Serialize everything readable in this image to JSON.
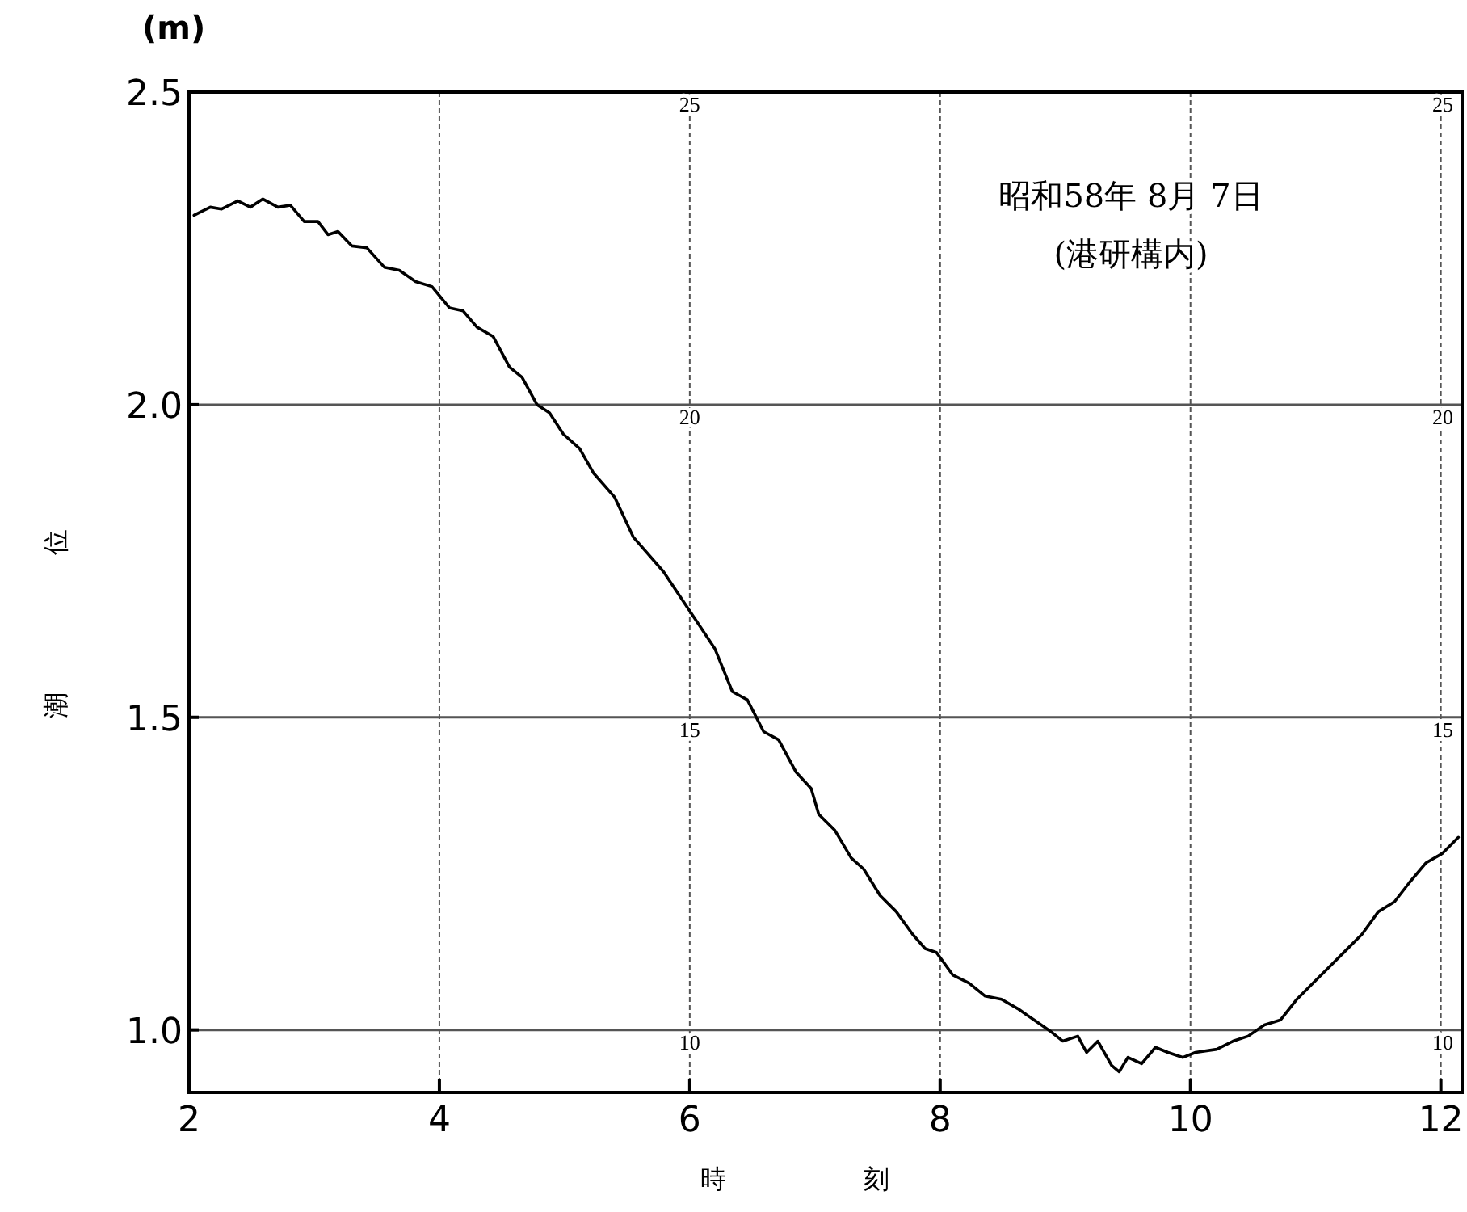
{
  "chart_data": {
    "type": "line",
    "ylabel": "潮 位",
    "xlabel": "時 刻",
    "annotations": [
      "(m)",
      "昭和58年 8月 7日",
      "(港研構内)",
      "10",
      "15",
      "20",
      "25"
    ],
    "xlim": [
      2,
      12.17
    ],
    "ylim": [
      0.9,
      2.5
    ],
    "xticks": [
      2,
      4,
      6,
      8,
      10,
      12
    ],
    "yticks": [
      {
        "value": 1.0,
        "label": "1.0"
      },
      1.5,
      {
        "value": 2.0,
        "label": "2.0"
      },
      2.5
    ],
    "y2lim": [
      9,
      25
    ],
    "y2ticks": [
      10,
      15,
      20,
      25
    ],
    "grid": true,
    "marker": "none",
    "line_style": "solid",
    "series": [
      {
        "color": "#000000",
        "x": [
          2.04,
          2.17,
          2.26,
          2.39,
          2.49,
          2.59,
          2.71,
          2.81,
          2.92,
          3.03,
          3.11,
          3.19,
          3.3,
          3.42,
          3.56,
          3.68,
          3.81,
          3.94,
          4.08,
          4.19,
          4.3,
          4.43,
          4.56,
          4.66,
          4.78,
          4.88,
          4.99,
          5.12,
          5.23,
          5.4,
          5.55,
          5.79,
          5.9,
          6.05,
          6.2,
          6.34,
          6.46,
          6.59,
          6.71,
          6.85,
          6.97,
          7.03,
          7.16,
          7.29,
          7.39,
          7.52,
          7.65,
          7.78,
          7.88,
          7.97,
          8.1,
          8.23,
          8.36,
          8.49,
          8.62,
          8.75,
          8.88,
          8.98,
          9.1,
          9.17,
          9.26,
          9.37,
          9.43,
          9.5,
          9.61,
          9.72,
          9.82,
          9.94,
          10.04,
          10.21,
          10.34,
          10.46,
          10.59,
          10.72,
          10.85,
          10.98,
          11.11,
          11.24,
          11.37,
          11.5,
          11.63,
          11.75,
          11.88,
          12.01,
          12.14
        ],
        "values": [
          2.303,
          2.316,
          2.313,
          2.326,
          2.316,
          2.329,
          2.316,
          2.319,
          2.293,
          2.293,
          2.272,
          2.277,
          2.254,
          2.251,
          2.22,
          2.215,
          2.197,
          2.189,
          2.155,
          2.15,
          2.124,
          2.109,
          2.06,
          2.044,
          2.0,
          1.987,
          1.953,
          1.93,
          1.891,
          1.852,
          1.788,
          1.733,
          1.7,
          1.655,
          1.61,
          1.541,
          1.528,
          1.477,
          1.464,
          1.412,
          1.386,
          1.345,
          1.319,
          1.275,
          1.257,
          1.215,
          1.189,
          1.153,
          1.13,
          1.124,
          1.088,
          1.075,
          1.054,
          1.049,
          1.034,
          1.016,
          0.998,
          0.982,
          0.99,
          0.964,
          0.982,
          0.943,
          0.933,
          0.956,
          0.946,
          0.972,
          0.964,
          0.956,
          0.964,
          0.969,
          0.982,
          0.99,
          1.008,
          1.016,
          1.049,
          1.075,
          1.101,
          1.127,
          1.153,
          1.189,
          1.205,
          1.236,
          1.267,
          1.282,
          1.308
        ]
      }
    ]
  }
}
